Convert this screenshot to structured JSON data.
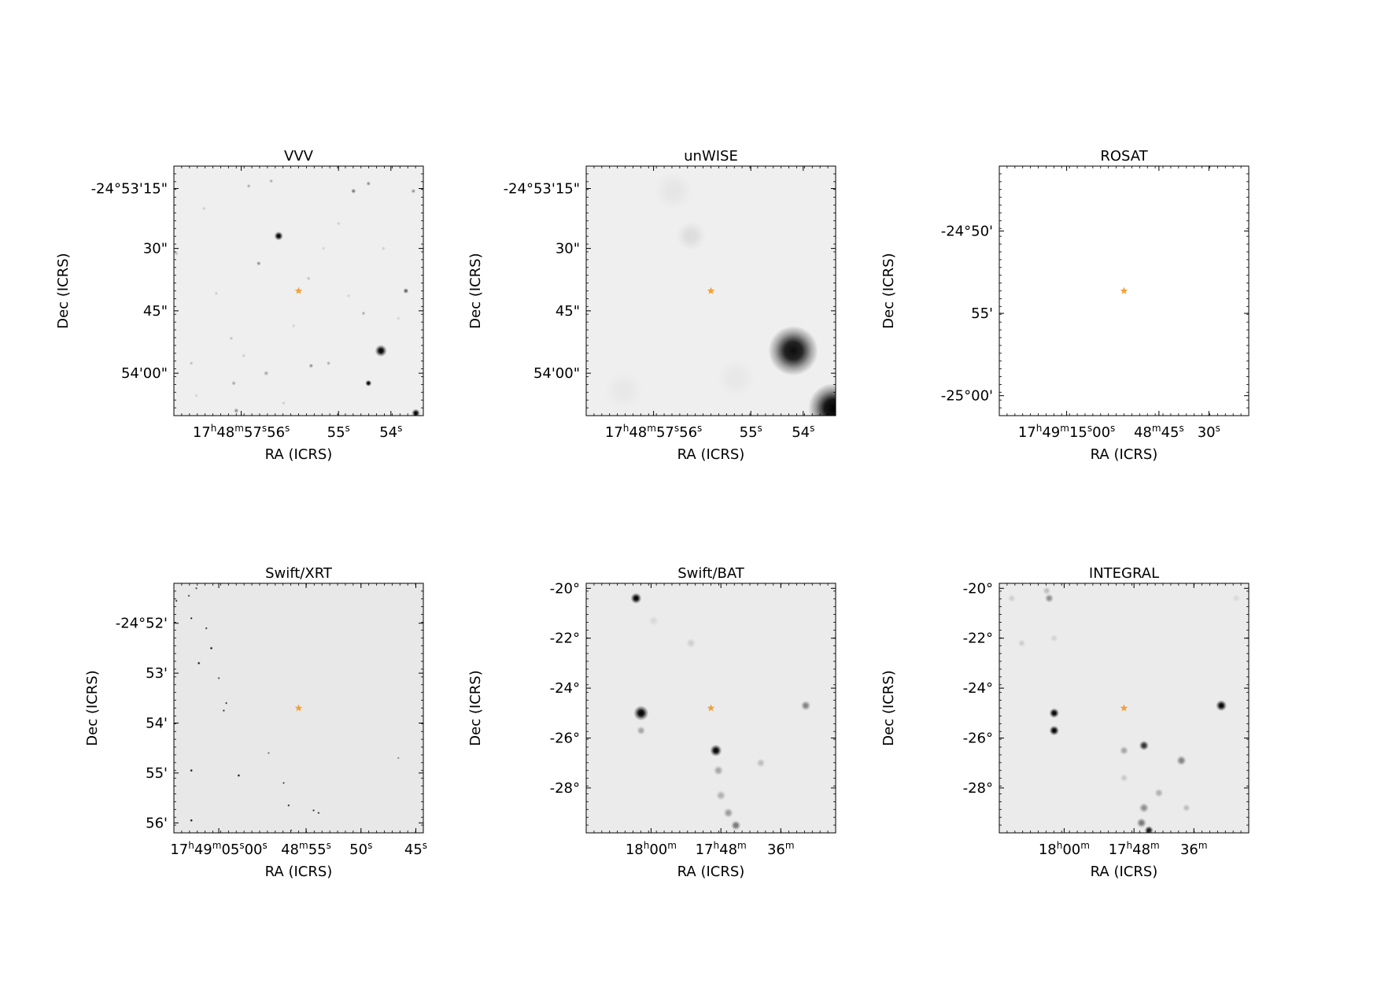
{
  "figure": {
    "target_marker_color": "#f4a13a",
    "frame_color": "#000000",
    "panels": [
      {
        "id": "vvv",
        "title": "VVV",
        "background": "#efefef",
        "xlabel": "RA (ICRS)",
        "ylabel": "Dec (ICRS)",
        "x_ticks": [
          {
            "parts": [
              [
                "17",
                "h"
              ],
              [
                "48",
                "m"
              ],
              [
                "57",
                "s"
              ],
              [
                "56",
                "s"
              ]
            ],
            "frac": 0.27
          },
          {
            "parts": [
              [
                "55",
                "s"
              ]
            ],
            "frac": 0.66
          },
          {
            "parts": [
              [
                "54",
                "s"
              ]
            ],
            "frac": 0.87
          }
        ],
        "y_ticks": [
          {
            "label": "-24°53'15\"",
            "frac": 0.09
          },
          {
            "label": "30\"",
            "frac": 0.33
          },
          {
            "label": "45\"",
            "frac": 0.58
          },
          {
            "label": "54'00\"",
            "frac": 0.83
          }
        ],
        "target": [
          0.5,
          0.5
        ],
        "sources": [
          [
            0.42,
            0.28,
            0.018,
            1.0
          ],
          [
            0.83,
            0.74,
            0.024,
            1.0
          ],
          [
            0.78,
            0.87,
            0.013,
            1.0
          ],
          [
            0.97,
            0.99,
            0.017,
            1.0
          ],
          [
            0.93,
            0.5,
            0.011,
            0.6
          ],
          [
            0.72,
            0.1,
            0.01,
            0.5
          ],
          [
            0.78,
            0.07,
            0.009,
            0.4
          ],
          [
            0.96,
            0.1,
            0.009,
            0.4
          ],
          [
            0.3,
            0.08,
            0.008,
            0.3
          ],
          [
            0.39,
            0.06,
            0.008,
            0.3
          ],
          [
            0.34,
            0.39,
            0.009,
            0.4
          ],
          [
            0.55,
            0.8,
            0.009,
            0.4
          ],
          [
            0.62,
            0.79,
            0.008,
            0.3
          ],
          [
            0.37,
            0.83,
            0.01,
            0.3
          ],
          [
            0.24,
            0.87,
            0.009,
            0.3
          ],
          [
            0.25,
            0.98,
            0.01,
            0.4
          ],
          [
            0.07,
            0.79,
            0.008,
            0.2
          ],
          [
            0.01,
            0.35,
            0.009,
            0.2
          ],
          [
            0.23,
            0.69,
            0.008,
            0.2
          ],
          [
            0.76,
            0.59,
            0.008,
            0.3
          ],
          [
            0.54,
            0.45,
            0.008,
            0.2
          ],
          [
            0.12,
            0.17,
            0.008,
            0.15
          ],
          [
            0.66,
            0.23,
            0.008,
            0.15
          ],
          [
            0.28,
            0.76,
            0.008,
            0.15
          ],
          [
            0.84,
            0.33,
            0.008,
            0.15
          ],
          [
            0.17,
            0.51,
            0.008,
            0.15
          ],
          [
            0.7,
            0.52,
            0.008,
            0.12
          ],
          [
            0.48,
            0.64,
            0.008,
            0.12
          ],
          [
            0.6,
            0.33,
            0.008,
            0.12
          ],
          [
            0.9,
            0.61,
            0.008,
            0.12
          ],
          [
            0.09,
            0.92,
            0.008,
            0.12
          ],
          [
            0.44,
            0.95,
            0.008,
            0.15
          ]
        ]
      },
      {
        "id": "unwise",
        "title": "unWISE",
        "background": "#efefef",
        "xlabel": "RA (ICRS)",
        "ylabel": "Dec (ICRS)",
        "x_ticks": [
          {
            "parts": [
              [
                "17",
                "h"
              ],
              [
                "48",
                "m"
              ],
              [
                "57",
                "s"
              ],
              [
                "56",
                "s"
              ]
            ],
            "frac": 0.27
          },
          {
            "parts": [
              [
                "55",
                "s"
              ]
            ],
            "frac": 0.66
          },
          {
            "parts": [
              [
                "54",
                "s"
              ]
            ],
            "frac": 0.87
          }
        ],
        "y_ticks": [
          {
            "label": "-24°53'15\"",
            "frac": 0.09
          },
          {
            "label": "30\"",
            "frac": 0.33
          },
          {
            "label": "45\"",
            "frac": 0.58
          },
          {
            "label": "54'00\"",
            "frac": 0.83
          }
        ],
        "target": [
          0.5,
          0.5
        ],
        "sources": [
          [
            0.83,
            0.74,
            0.1,
            0.95
          ],
          [
            0.99,
            0.97,
            0.1,
            1.0
          ],
          [
            0.42,
            0.28,
            0.06,
            0.08
          ],
          [
            0.35,
            0.1,
            0.08,
            0.04
          ],
          [
            0.15,
            0.9,
            0.08,
            0.03
          ],
          [
            0.6,
            0.85,
            0.08,
            0.03
          ]
        ]
      },
      {
        "id": "rosat",
        "title": "ROSAT",
        "background": "#ffffff",
        "xlabel": "RA (ICRS)",
        "ylabel": "Dec (ICRS)",
        "x_ticks": [
          {
            "parts": [
              [
                "17",
                "h"
              ],
              [
                "49",
                "m"
              ],
              [
                "15",
                "s"
              ],
              [
                "00",
                "s"
              ]
            ],
            "frac": 0.27
          },
          {
            "parts": [
              [
                "48",
                "m"
              ],
              [
                "45",
                "s"
              ]
            ],
            "frac": 0.64
          },
          {
            "parts": [
              [
                "30",
                "s"
              ]
            ],
            "frac": 0.84
          }
        ],
        "y_ticks": [
          {
            "label": "-24°50'",
            "frac": 0.26
          },
          {
            "label": "55'",
            "frac": 0.59
          },
          {
            "label": "-25°00'",
            "frac": 0.92
          }
        ],
        "target": [
          0.5,
          0.5
        ],
        "sources": []
      },
      {
        "id": "swift-xrt",
        "title": "Swift/XRT",
        "background": "#e8e8e8",
        "xlabel": "RA (ICRS)",
        "ylabel": "Dec (ICRS)",
        "x_ticks": [
          {
            "parts": [
              [
                "17",
                "h"
              ],
              [
                "49",
                "m"
              ],
              [
                "05",
                "s"
              ],
              [
                "00",
                "s"
              ]
            ],
            "frac": 0.18
          },
          {
            "parts": [
              [
                "48",
                "m"
              ],
              [
                "55",
                "s"
              ]
            ],
            "frac": 0.53
          },
          {
            "parts": [
              [
                "50",
                "s"
              ]
            ],
            "frac": 0.75
          },
          {
            "parts": [
              [
                "45",
                "s"
              ]
            ],
            "frac": 0.97
          }
        ],
        "y_ticks": [
          {
            "label": "-24°52'",
            "frac": 0.16
          },
          {
            "label": "53'",
            "frac": 0.36
          },
          {
            "label": "54'",
            "frac": 0.56
          },
          {
            "label": "55'",
            "frac": 0.76
          },
          {
            "label": "56'",
            "frac": 0.96
          }
        ],
        "target": [
          0.5,
          0.5
        ],
        "sources": [
          [
            0.07,
            0.95,
            0.006,
            1.0
          ],
          [
            0.07,
            0.75,
            0.006,
            1.0
          ],
          [
            0.26,
            0.77,
            0.006,
            1.0
          ],
          [
            0.1,
            0.32,
            0.006,
            1.0
          ],
          [
            0.15,
            0.26,
            0.006,
            1.0
          ],
          [
            0.07,
            0.14,
            0.005,
            1.0
          ],
          [
            0.13,
            0.18,
            0.005,
            0.9
          ],
          [
            0.21,
            0.48,
            0.005,
            0.9
          ],
          [
            0.2,
            0.51,
            0.005,
            0.9
          ],
          [
            0.18,
            0.38,
            0.005,
            0.8
          ],
          [
            0.01,
            0.07,
            0.005,
            0.9
          ],
          [
            0.06,
            0.05,
            0.005,
            0.8
          ],
          [
            0.09,
            0.02,
            0.005,
            0.8
          ],
          [
            0.46,
            0.89,
            0.005,
            1.0
          ],
          [
            0.56,
            0.91,
            0.005,
            0.9
          ],
          [
            0.58,
            0.92,
            0.005,
            0.9
          ],
          [
            0.44,
            0.8,
            0.005,
            0.8
          ],
          [
            0.38,
            0.68,
            0.005,
            0.6
          ],
          [
            0.47,
            0.99,
            0.005,
            0.7
          ],
          [
            0.9,
            0.7,
            0.005,
            0.5
          ]
        ]
      },
      {
        "id": "swift-bat",
        "title": "Swift/BAT",
        "background": "#ebebeb",
        "xlabel": "RA (ICRS)",
        "ylabel": "Dec (ICRS)",
        "x_ticks": [
          {
            "parts": [
              [
                "18",
                "h"
              ],
              [
                "00",
                "m"
              ]
            ],
            "frac": 0.26
          },
          {
            "parts": [
              [
                "17",
                "h"
              ],
              [
                "48",
                "m"
              ]
            ],
            "frac": 0.54
          },
          {
            "parts": [
              [
                "36",
                "m"
              ]
            ],
            "frac": 0.78
          }
        ],
        "y_ticks": [
          {
            "label": "-20°",
            "frac": 0.02
          },
          {
            "label": "-22°",
            "frac": 0.22
          },
          {
            "label": "-24°",
            "frac": 0.42
          },
          {
            "label": "-26°",
            "frac": 0.62
          },
          {
            "label": "-28°",
            "frac": 0.82
          }
        ],
        "target": [
          0.5,
          0.5
        ],
        "sources": [
          [
            0.2,
            0.06,
            0.022,
            1.0
          ],
          [
            0.22,
            0.52,
            0.03,
            1.0
          ],
          [
            0.22,
            0.59,
            0.018,
            0.3
          ],
          [
            0.52,
            0.67,
            0.024,
            1.0
          ],
          [
            0.53,
            0.75,
            0.02,
            0.3
          ],
          [
            0.88,
            0.49,
            0.02,
            0.45
          ],
          [
            0.7,
            0.72,
            0.018,
            0.2
          ],
          [
            0.54,
            0.85,
            0.02,
            0.25
          ],
          [
            0.57,
            0.92,
            0.02,
            0.35
          ],
          [
            0.6,
            0.97,
            0.02,
            0.5
          ],
          [
            0.42,
            0.24,
            0.02,
            0.12
          ],
          [
            0.27,
            0.15,
            0.02,
            0.08
          ]
        ]
      },
      {
        "id": "integral",
        "title": "INTEGRAL",
        "background": "#ebebeb",
        "xlabel": "RA (ICRS)",
        "ylabel": "Dec (ICRS)",
        "x_ticks": [
          {
            "parts": [
              [
                "18",
                "h"
              ],
              [
                "00",
                "m"
              ]
            ],
            "frac": 0.26
          },
          {
            "parts": [
              [
                "17",
                "h"
              ],
              [
                "48",
                "m"
              ]
            ],
            "frac": 0.54
          },
          {
            "parts": [
              [
                "36",
                "m"
              ]
            ],
            "frac": 0.78
          }
        ],
        "y_ticks": [
          {
            "label": "-20°",
            "frac": 0.02
          },
          {
            "label": "-22°",
            "frac": 0.22
          },
          {
            "label": "-24°",
            "frac": 0.42
          },
          {
            "label": "-26°",
            "frac": 0.62
          },
          {
            "label": "-28°",
            "frac": 0.82
          }
        ],
        "target": [
          0.5,
          0.5
        ],
        "sources": [
          [
            0.22,
            0.52,
            0.02,
            1.0
          ],
          [
            0.22,
            0.59,
            0.02,
            1.0
          ],
          [
            0.89,
            0.49,
            0.022,
            1.0
          ],
          [
            0.58,
            0.65,
            0.02,
            0.8
          ],
          [
            0.5,
            0.67,
            0.018,
            0.3
          ],
          [
            0.73,
            0.71,
            0.02,
            0.45
          ],
          [
            0.2,
            0.06,
            0.018,
            0.4
          ],
          [
            0.19,
            0.03,
            0.016,
            0.2
          ],
          [
            0.64,
            0.84,
            0.018,
            0.25
          ],
          [
            0.58,
            0.9,
            0.02,
            0.4
          ],
          [
            0.57,
            0.96,
            0.02,
            0.5
          ],
          [
            0.6,
            0.99,
            0.018,
            0.9
          ],
          [
            0.75,
            0.9,
            0.016,
            0.2
          ],
          [
            0.5,
            0.78,
            0.016,
            0.15
          ],
          [
            0.09,
            0.24,
            0.016,
            0.12
          ],
          [
            0.22,
            0.22,
            0.016,
            0.1
          ],
          [
            0.05,
            0.06,
            0.016,
            0.12
          ],
          [
            0.95,
            0.06,
            0.016,
            0.08
          ]
        ]
      }
    ]
  }
}
